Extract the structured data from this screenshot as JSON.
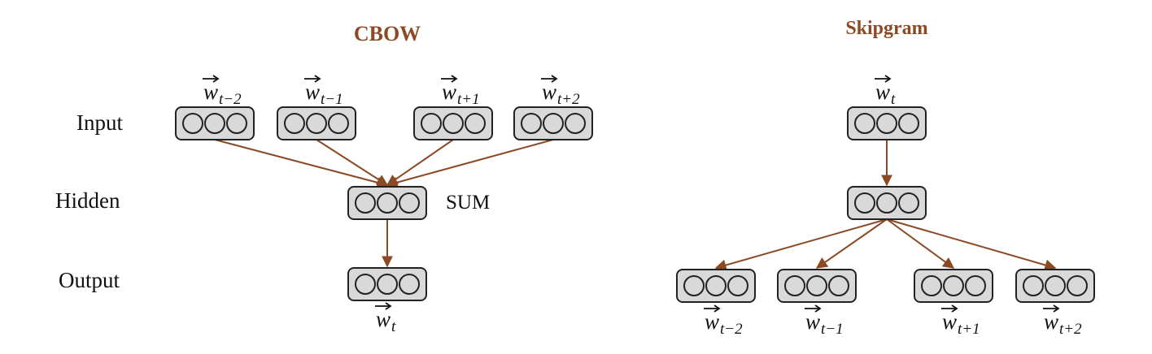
{
  "colors": {
    "title": "#8B4A24",
    "arrow": "#8B4A24",
    "box_fill": "#d9d9d9",
    "box_stroke": "#222222",
    "text": "#111111"
  },
  "row_labels": [
    "Input",
    "Hidden",
    "Output"
  ],
  "cbow": {
    "title": "CBOW",
    "inputs": [
      {
        "base": "w",
        "sub": "t−2"
      },
      {
        "base": "w",
        "sub": "t−1"
      },
      {
        "base": "w",
        "sub": "t+1"
      },
      {
        "base": "w",
        "sub": "t+2"
      }
    ],
    "hidden_op": "SUM",
    "output": {
      "base": "w",
      "sub": "t"
    }
  },
  "skipgram": {
    "title": "Skipgram",
    "input": {
      "base": "w",
      "sub": "t"
    },
    "outputs": [
      {
        "base": "w",
        "sub": "t−2"
      },
      {
        "base": "w",
        "sub": "t−1"
      },
      {
        "base": "w",
        "sub": "t+1"
      },
      {
        "base": "w",
        "sub": "t+2"
      }
    ]
  }
}
